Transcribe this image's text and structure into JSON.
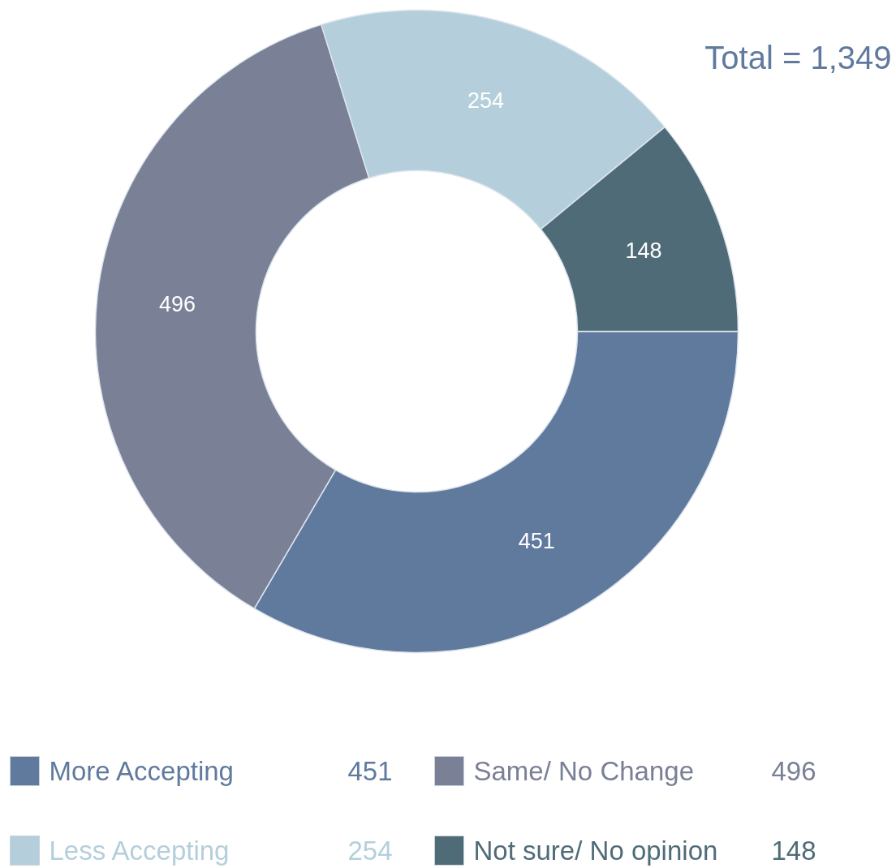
{
  "chart_data": {
    "type": "donut",
    "categories": [
      "More Accepting",
      "Same/ No Change",
      "Less Accepting",
      "Not sure/ No opinion"
    ],
    "values": [
      451,
      496,
      254,
      148
    ],
    "colors": [
      "#607a9e",
      "#7a8096",
      "#b4cfdb",
      "#4f6b78"
    ],
    "data_labels": true,
    "legend": "bottom",
    "annotations": [
      "Total = 1,349",
      "451",
      "496",
      "254",
      "148"
    ]
  }
}
